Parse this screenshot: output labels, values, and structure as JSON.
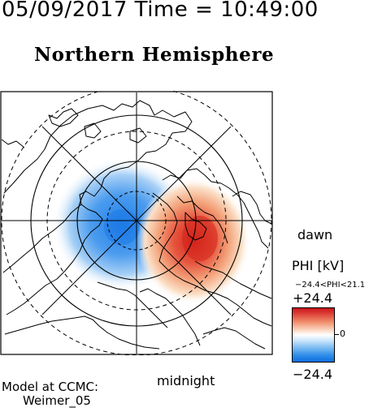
{
  "header": {
    "datetime": "05/09/2017 Time = 10:49:00",
    "hemisphere": "Northern Hemisphere"
  },
  "map": {
    "label_dawn": "dawn",
    "label_midnight": "midnight",
    "grid": true,
    "coastlines": true
  },
  "colorbar": {
    "title": "PHI [kV]",
    "range_text": "−24.4<PHI<21.1",
    "max_label": "+24.4",
    "min_label": "−24.4",
    "zero_label": "0",
    "colors": {
      "positive": "#d7261e",
      "zero": "#ffffff",
      "negative": "#1e78e6"
    }
  },
  "footer": {
    "model_line1": "Model at CCMC:",
    "model_line2": "Weimer_05"
  }
}
